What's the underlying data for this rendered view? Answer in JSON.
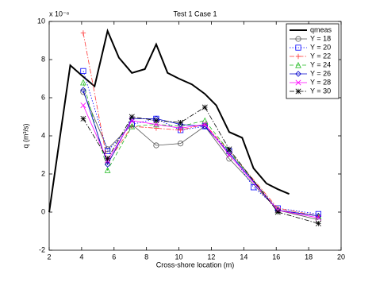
{
  "chart_data": {
    "type": "line",
    "title": "Test 1 Case 1",
    "x_label": "Cross-shore location (m)",
    "y_label": "q (m³/s)",
    "y_multiplier": "x 10⁻⁶",
    "xlim": [
      2,
      20
    ],
    "ylim": [
      -2,
      10
    ],
    "xticks": [
      2,
      4,
      6,
      8,
      10,
      12,
      14,
      16,
      18,
      20
    ],
    "yticks": [
      -2,
      0,
      2,
      4,
      6,
      8,
      10
    ],
    "legend": "top-right",
    "series": [
      {
        "name": "qmeas",
        "color": "#000000",
        "width": 2,
        "dash": "solid",
        "marker": "none",
        "x": [
          2,
          3.3,
          4.1,
          4.8,
          5.6,
          6.3,
          7.1,
          7.9,
          8.6,
          9.3,
          10.0,
          10.8,
          11.6,
          12.3,
          13.1,
          13.9,
          14.6,
          15.4,
          16.1,
          16.8
        ],
        "values": [
          0,
          7.7,
          7.1,
          6.6,
          9.5,
          8.1,
          7.3,
          7.5,
          8.8,
          7.3,
          7.0,
          6.7,
          6.2,
          5.6,
          4.2,
          3.9,
          2.3,
          1.5,
          1.2,
          0.95
        ]
      },
      {
        "name": "Y = 18",
        "color": "#555555",
        "width": 0.8,
        "dash": "solid",
        "marker": "circle",
        "x": [
          4.1,
          5.6,
          7.1,
          8.6,
          10.1,
          11.6,
          13.1,
          16.1,
          18.6
        ],
        "values": [
          6.3,
          3.3,
          4.6,
          3.5,
          3.6,
          4.5,
          2.8,
          0.1,
          -0.4
        ]
      },
      {
        "name": "Y = 20",
        "color": "#0000ff",
        "width": 0.8,
        "dash": "dotted",
        "marker": "square",
        "x": [
          4.1,
          5.6,
          7.1,
          8.6,
          10.1,
          11.6,
          13.1,
          14.6,
          16.1,
          18.6
        ],
        "values": [
          7.4,
          3.2,
          4.6,
          4.9,
          4.3,
          4.5,
          3.2,
          1.3,
          0.2,
          -0.1
        ]
      },
      {
        "name": "Y = 22",
        "color": "#ff3333",
        "width": 0.8,
        "dash": "dashdot",
        "marker": "plus",
        "x": [
          4.1,
          5.6,
          7.1,
          8.6,
          10.1,
          11.6,
          13.1,
          16.1,
          18.6
        ],
        "values": [
          9.4,
          2.6,
          4.5,
          4.4,
          4.3,
          4.6,
          3.2,
          0.2,
          -0.2
        ]
      },
      {
        "name": "Y = 24",
        "color": "#22bb22",
        "width": 0.8,
        "dash": "dashed",
        "marker": "triangle",
        "x": [
          4.1,
          5.6,
          7.1,
          8.6,
          10.1,
          11.6,
          13.1,
          16.1,
          18.6
        ],
        "values": [
          6.8,
          2.2,
          4.5,
          4.6,
          4.5,
          4.8,
          3.2,
          0.1,
          -0.2
        ]
      },
      {
        "name": "Y = 26",
        "color": "#0000cc",
        "width": 0.8,
        "dash": "solid",
        "marker": "diamond",
        "x": [
          4.1,
          5.6,
          7.1,
          8.6,
          10.1,
          11.6,
          13.1,
          16.1,
          18.6
        ],
        "values": [
          6.4,
          2.5,
          4.9,
          4.9,
          4.6,
          4.5,
          3.1,
          0.1,
          -0.2
        ]
      },
      {
        "name": "Y = 28",
        "color": "#ff00ff",
        "width": 0.8,
        "dash": "solid",
        "marker": "x",
        "x": [
          4.1,
          5.6,
          7.1,
          8.6,
          10.1,
          11.6,
          13.1,
          16.1,
          18.6
        ],
        "values": [
          5.6,
          2.7,
          4.8,
          4.6,
          4.4,
          4.6,
          3.0,
          0.1,
          -0.3
        ]
      },
      {
        "name": "Y = 30",
        "color": "#000000",
        "width": 0.8,
        "dash": "dashdot",
        "marker": "star",
        "x": [
          4.1,
          5.6,
          7.1,
          8.6,
          10.1,
          11.6,
          13.1,
          16.1,
          18.6
        ],
        "values": [
          4.9,
          2.8,
          5.0,
          4.8,
          4.7,
          5.5,
          3.3,
          0.0,
          -0.6
        ]
      }
    ]
  }
}
